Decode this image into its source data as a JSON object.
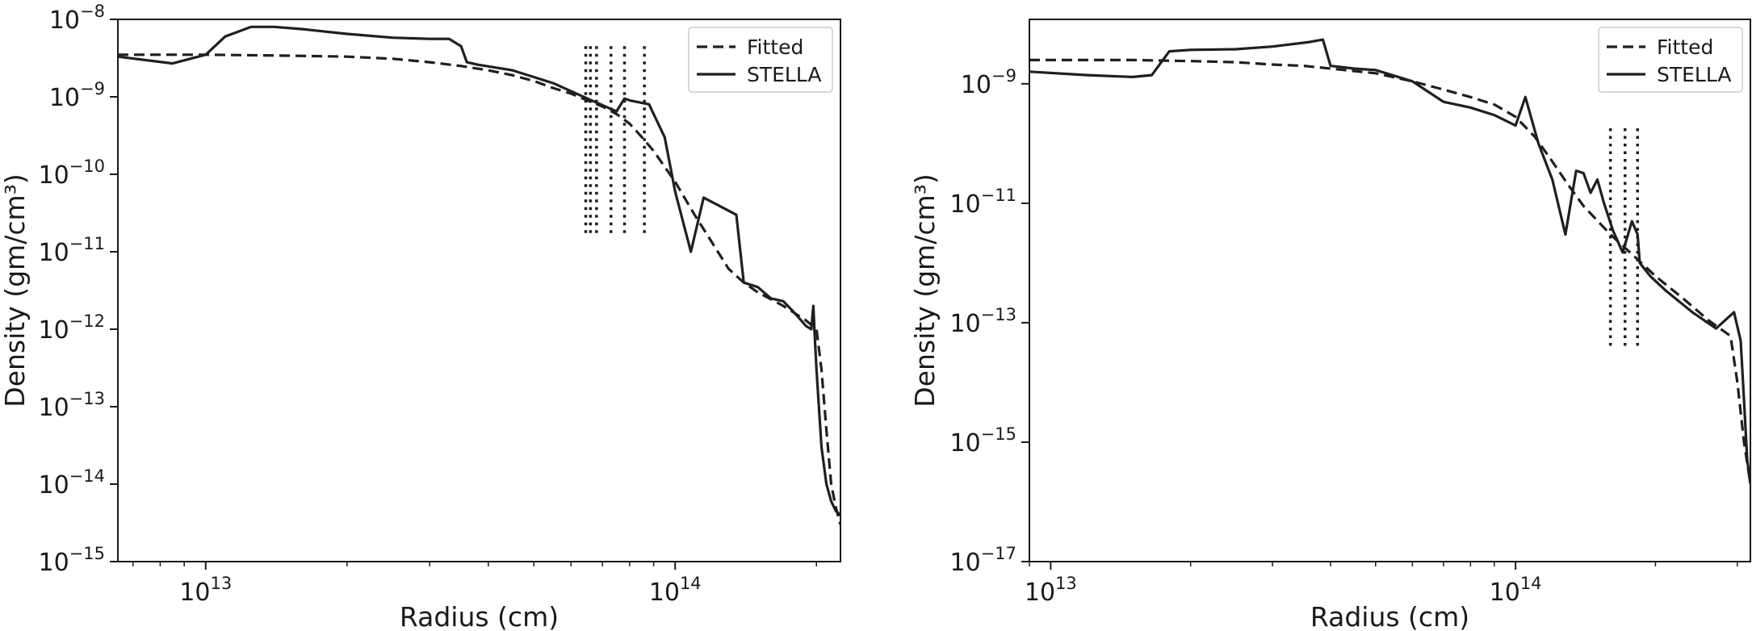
{
  "colors": {
    "line": "#1f1f1f",
    "axis": "#1a1a1a",
    "legend_border": "#cccccc",
    "background": "#ffffff"
  },
  "chart_data": [
    {
      "type": "line",
      "title": "",
      "xlabel": "Radius (cm)",
      "ylabel": "Density (gm/cm³)",
      "xscale": "log",
      "yscale": "log",
      "xlim": [
        6500000000000.0,
        225000000000000.0
      ],
      "ylim": [
        1e-15,
        1e-08
      ],
      "x_ticks": [
        {
          "value": 10000000000000.0,
          "base": "10",
          "exp": "13"
        },
        {
          "value": 100000000000000.0,
          "base": "10",
          "exp": "14"
        }
      ],
      "y_ticks": [
        {
          "value": 1e-08,
          "base": "10",
          "exp": "−8"
        },
        {
          "value": 1e-09,
          "base": "10",
          "exp": "−9"
        },
        {
          "value": 1e-10,
          "base": "10",
          "exp": "−10"
        },
        {
          "value": 1e-11,
          "base": "10",
          "exp": "−11"
        },
        {
          "value": 1e-12,
          "base": "10",
          "exp": "−12"
        },
        {
          "value": 1e-13,
          "base": "10",
          "exp": "−13"
        },
        {
          "value": 1e-14,
          "base": "10",
          "exp": "−14"
        },
        {
          "value": 1e-15,
          "base": "10",
          "exp": "−15"
        }
      ],
      "legend": {
        "position": "upper-right",
        "entries": [
          "Fitted",
          "STELLA"
        ]
      },
      "grid": false,
      "series": [
        {
          "name": "Fitted",
          "style": "dashed",
          "x": [
            6500000000000.0,
            10000000000000.0,
            15000000000000.0,
            20000000000000.0,
            25000000000000.0,
            30000000000000.0,
            35000000000000.0,
            40000000000000.0,
            45000000000000.0,
            50000000000000.0,
            55000000000000.0,
            60000000000000.0,
            65000000000000.0,
            70000000000000.0,
            75000000000000.0,
            80000000000000.0,
            85000000000000.0,
            90000000000000.0,
            100000000000000.0,
            110000000000000.0,
            120000000000000.0,
            130000000000000.0,
            140000000000000.0,
            150000000000000.0,
            170000000000000.0,
            190000000000000.0,
            200000000000000.0,
            205000000000000.0,
            210000000000000.0,
            215000000000000.0,
            220000000000000.0,
            225000000000000.0
          ],
          "y": [
            3.5e-09,
            3.5e-09,
            3.4e-09,
            3.3e-09,
            3.1e-09,
            2.8e-09,
            2.5e-09,
            2.2e-09,
            1.9e-09,
            1.6e-09,
            1.3e-09,
            1.1e-09,
            9e-10,
            7.5e-10,
            6e-10,
            4.5e-10,
            3e-10,
            2e-10,
            8e-11,
            3e-11,
            1.3e-11,
            6e-12,
            4e-12,
            3e-12,
            2e-12,
            1.3e-12,
            1e-12,
            3e-13,
            5e-14,
            1e-14,
            5e-15,
            3e-15
          ]
        },
        {
          "name": "STELLA",
          "style": "solid",
          "x": [
            6500000000000.0,
            8500000000000.0,
            10000000000000.0,
            11000000000000.0,
            12500000000000.0,
            14000000000000.0,
            16000000000000.0,
            20000000000000.0,
            25000000000000.0,
            30000000000000.0,
            33000000000000.0,
            35000000000000.0,
            36000000000000.0,
            38000000000000.0,
            45000000000000.0,
            55000000000000.0,
            65000000000000.0,
            75000000000000.0,
            78000000000000.0,
            80000000000000.0,
            88000000000000.0,
            95000000000000.0,
            100000000000000.0,
            108000000000000.0,
            115000000000000.0,
            135000000000000.0,
            140000000000000.0,
            150000000000000.0,
            160000000000000.0,
            170000000000000.0,
            180000000000000.0,
            190000000000000.0,
            195000000000000.0,
            197000000000000.0,
            198000000000000.0,
            200000000000000.0,
            205000000000000.0,
            210000000000000.0,
            215000000000000.0,
            220000000000000.0,
            225000000000000.0
          ],
          "y": [
            3.3e-09,
            2.7e-09,
            3.5e-09,
            6e-09,
            8e-09,
            8e-09,
            7.5e-09,
            6.5e-09,
            5.8e-09,
            5.6e-09,
            5.6e-09,
            4.5e-09,
            2.8e-09,
            2.6e-09,
            2.2e-09,
            1.5e-09,
            9.5e-10,
            6.5e-10,
            9.5e-10,
            9e-10,
            8e-10,
            3e-10,
            6e-11,
            1e-11,
            5e-11,
            3e-11,
            4e-12,
            3.5e-12,
            2.5e-12,
            2.3e-12,
            1.6e-12,
            1.1e-12,
            1e-12,
            2e-12,
            1e-12,
            3e-13,
            3e-14,
            1e-14,
            6e-15,
            4.5e-15,
            4e-15
          ]
        }
      ],
      "vlines": {
        "style": "dotted",
        "y_range": [
          1.6e-11,
          4.5e-09
        ],
        "x": [
          64500000000000.0,
          66000000000000.0,
          68000000000000.0,
          73000000000000.0,
          78000000000000.0,
          86000000000000.0
        ]
      }
    },
    {
      "type": "line",
      "title": "",
      "xlabel": "Radius (cm)",
      "ylabel": "Density (gm/cm³)",
      "xscale": "log",
      "yscale": "log",
      "xlim": [
        9000000000000.0,
        320000000000000.0
      ],
      "ylim": [
        1e-17,
        1.2e-08
      ],
      "x_ticks": [
        {
          "value": 10000000000000.0,
          "base": "10",
          "exp": "13"
        },
        {
          "value": 100000000000000.0,
          "base": "10",
          "exp": "14"
        }
      ],
      "y_ticks": [
        {
          "value": 1e-09,
          "base": "10",
          "exp": "−9"
        },
        {
          "value": 1e-11,
          "base": "10",
          "exp": "−11"
        },
        {
          "value": 1e-13,
          "base": "10",
          "exp": "−13"
        },
        {
          "value": 1e-15,
          "base": "10",
          "exp": "−15"
        },
        {
          "value": 1e-17,
          "base": "10",
          "exp": "−17"
        }
      ],
      "legend": {
        "position": "upper-right",
        "entries": [
          "Fitted",
          "STELLA"
        ]
      },
      "grid": false,
      "series": [
        {
          "name": "Fitted",
          "style": "dashed",
          "x": [
            9000000000000.0,
            15000000000000.0,
            20000000000000.0,
            25000000000000.0,
            30000000000000.0,
            35000000000000.0,
            40000000000000.0,
            50000000000000.0,
            60000000000000.0,
            70000000000000.0,
            80000000000000.0,
            90000000000000.0,
            100000000000000.0,
            110000000000000.0,
            120000000000000.0,
            130000000000000.0,
            140000000000000.0,
            160000000000000.0,
            180000000000000.0,
            200000000000000.0,
            230000000000000.0,
            260000000000000.0,
            290000000000000.0,
            300000000000000.0,
            310000000000000.0,
            320000000000000.0
          ],
          "y": [
            2.5e-09,
            2.5e-09,
            2.4e-09,
            2.3e-09,
            2.1e-09,
            2e-09,
            1.8e-09,
            1.5e-09,
            1.1e-09,
            8e-10,
            6e-10,
            4.5e-10,
            2.8e-10,
            1.3e-10,
            5e-11,
            2e-11,
            9e-12,
            3e-12,
            1.3e-12,
            6e-13,
            2.5e-13,
            1.1e-13,
            6e-14,
            1e-14,
            1e-15,
            2e-16
          ]
        },
        {
          "name": "STELLA",
          "style": "solid",
          "x": [
            9000000000000.0,
            12000000000000.0,
            15000000000000.0,
            16500000000000.0,
            18000000000000.0,
            20000000000000.0,
            25000000000000.0,
            30000000000000.0,
            36000000000000.0,
            38500000000000.0,
            40000000000000.0,
            45000000000000.0,
            50000000000000.0,
            60000000000000.0,
            70000000000000.0,
            80000000000000.0,
            90000000000000.0,
            100000000000000.0,
            105000000000000.0,
            112000000000000.0,
            120000000000000.0,
            128000000000000.0,
            135000000000000.0,
            140000000000000.0,
            145000000000000.0,
            150000000000000.0,
            155000000000000.0,
            162000000000000.0,
            170000000000000.0,
            178000000000000.0,
            183000000000000.0,
            185000000000000.0,
            195000000000000.0,
            210000000000000.0,
            240000000000000.0,
            270000000000000.0,
            295000000000000.0,
            305000000000000.0,
            310000000000000.0,
            315000000000000.0,
            320000000000000.0
          ],
          "y": [
            1.6e-09,
            1.4e-09,
            1.3e-09,
            1.4e-09,
            3.5e-09,
            3.7e-09,
            3.8e-09,
            4.2e-09,
            5e-09,
            5.5e-09,
            2e-09,
            1.8e-09,
            1.7e-09,
            1.1e-09,
            5e-10,
            4e-10,
            3e-10,
            2e-10,
            6e-10,
            1e-10,
            2.5e-11,
            3e-12,
            3.5e-11,
            3.2e-11,
            1.5e-11,
            2.5e-11,
            1e-11,
            3.5e-12,
            1.5e-12,
            5e-12,
            3e-12,
            1e-12,
            6e-13,
            3.5e-13,
            1.5e-13,
            8e-14,
            1.5e-13,
            5e-14,
            5e-15,
            5e-16,
            2e-16
          ]
        }
      ],
      "vlines": {
        "style": "dotted",
        "y_range": [
          4e-14,
          1.8e-10
        ],
        "x": [
          160000000000000.0,
          172000000000000.0,
          183000000000000.0
        ]
      }
    }
  ]
}
